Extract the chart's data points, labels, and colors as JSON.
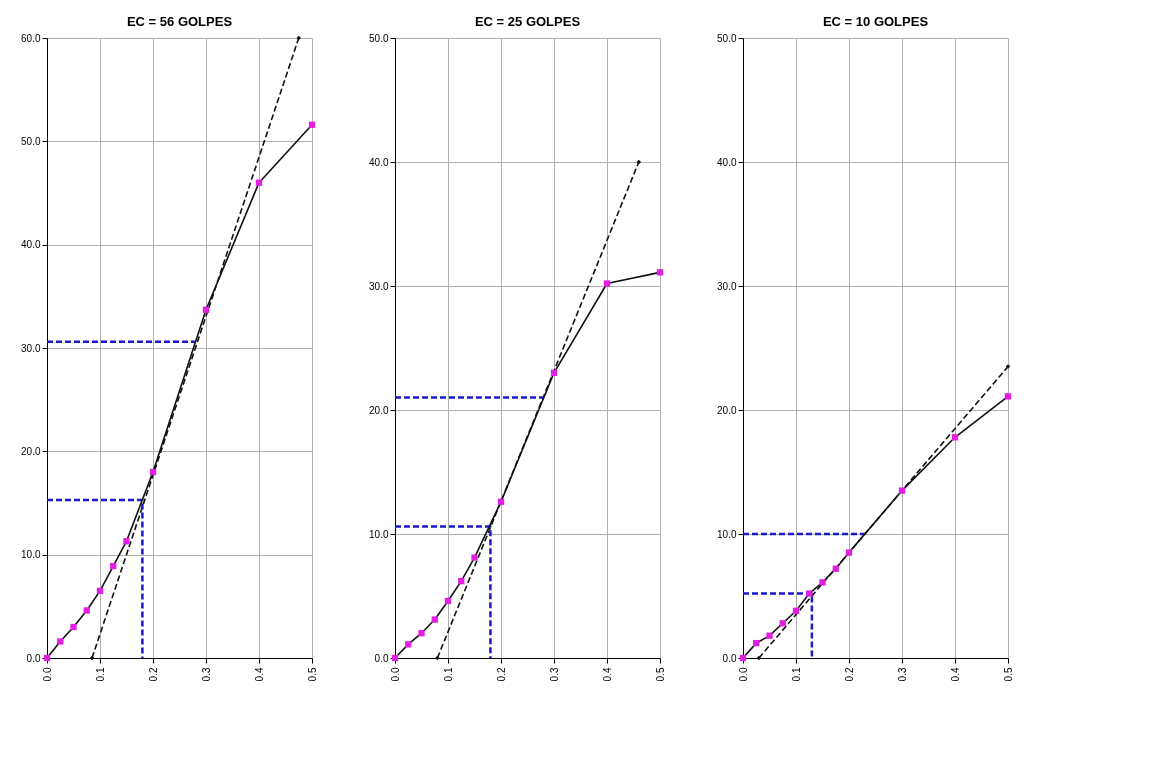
{
  "chart_data": [
    {
      "type": "line",
      "title": "EC = 56 GOLPES",
      "xlim": [
        0,
        0.5
      ],
      "ylim": [
        0,
        60
      ],
      "grid": true,
      "xticks": [
        {
          "value": 0,
          "label": "0.0"
        },
        {
          "value": 0.1,
          "label": "0.1"
        },
        {
          "value": 0.2,
          "label": "0.2"
        },
        {
          "value": 0.3,
          "label": "0.3"
        },
        {
          "value": 0.4,
          "label": "0.4"
        },
        {
          "value": 0.5,
          "label": "0.5"
        }
      ],
      "yticks": [
        {
          "value": 0,
          "label": "0.0"
        },
        {
          "value": 10,
          "label": "10.0"
        },
        {
          "value": 20,
          "label": "20.0"
        },
        {
          "value": 30,
          "label": "30.0"
        },
        {
          "value": 40,
          "label": "40.0"
        },
        {
          "value": 50,
          "label": "50.0"
        },
        {
          "value": 60,
          "label": "60.0"
        }
      ],
      "series": [
        {
          "type": "line",
          "color": "#111111",
          "line_style": "dashed",
          "marker": "diamond",
          "x": [
            0.085,
            0.475
          ],
          "values": [
            0,
            60
          ]
        },
        {
          "type": "line",
          "color": "#1a1acc",
          "line_style": "dashed",
          "marker": "none",
          "x": [
            0,
            0.18,
            0.18
          ],
          "values": [
            15.3,
            15.3,
            0
          ]
        },
        {
          "type": "line",
          "color": "#1a1acc",
          "line_style": "dashed",
          "marker": "none",
          "x": [
            0,
            0.28
          ],
          "values": [
            30.6,
            30.6
          ]
        },
        {
          "type": "line",
          "color": "#111111",
          "line_style": "solid",
          "marker": "none",
          "x": [
            0,
            0.025,
            0.05,
            0.075,
            0.1,
            0.125,
            0.15,
            0.2,
            0.3,
            0.4,
            0.5
          ],
          "values": [
            0,
            1.6,
            3.0,
            4.6,
            6.5,
            8.9,
            11.3,
            18.0,
            33.7,
            46.0,
            51.6
          ]
        },
        {
          "type": "scatter",
          "color": "#e020e0",
          "marker": "square",
          "x": [
            0,
            0.025,
            0.05,
            0.075,
            0.1,
            0.125,
            0.15,
            0.2,
            0.3,
            0.4,
            0.5
          ],
          "values": [
            0,
            1.6,
            3.0,
            4.6,
            6.5,
            8.9,
            11.3,
            18.0,
            33.7,
            46.0,
            51.6
          ]
        }
      ]
    },
    {
      "type": "line",
      "title": "EC = 25 GOLPES",
      "xlim": [
        0,
        0.5
      ],
      "ylim": [
        0,
        50
      ],
      "grid": true,
      "xticks": [
        {
          "value": 0,
          "label": "0.0"
        },
        {
          "value": 0.1,
          "label": "0.1"
        },
        {
          "value": 0.2,
          "label": "0.2"
        },
        {
          "value": 0.3,
          "label": "0.3"
        },
        {
          "value": 0.4,
          "label": "0.4"
        },
        {
          "value": 0.5,
          "label": "0.5"
        }
      ],
      "yticks": [
        {
          "value": 0,
          "label": "0.0"
        },
        {
          "value": 10,
          "label": "10.0"
        },
        {
          "value": 20,
          "label": "20.0"
        },
        {
          "value": 30,
          "label": "30.0"
        },
        {
          "value": 40,
          "label": "40.0"
        },
        {
          "value": 50,
          "label": "50.0"
        }
      ],
      "series": [
        {
          "type": "line",
          "color": "#111111",
          "line_style": "dashed",
          "marker": "diamond",
          "x": [
            0.08,
            0.46
          ],
          "values": [
            0,
            40
          ]
        },
        {
          "type": "line",
          "color": "#1a1acc",
          "line_style": "dashed",
          "marker": "none",
          "x": [
            0,
            0.18,
            0.18
          ],
          "values": [
            10.6,
            10.6,
            0
          ]
        },
        {
          "type": "line",
          "color": "#1a1acc",
          "line_style": "dashed",
          "marker": "none",
          "x": [
            0,
            0.28
          ],
          "values": [
            21.0,
            21.0
          ]
        },
        {
          "type": "line",
          "color": "#111111",
          "line_style": "solid",
          "marker": "none",
          "x": [
            0,
            0.025,
            0.05,
            0.075,
            0.1,
            0.125,
            0.15,
            0.2,
            0.3,
            0.4,
            0.5
          ],
          "values": [
            0,
            1.1,
            2.0,
            3.1,
            4.6,
            6.2,
            8.1,
            12.6,
            23.0,
            30.2,
            31.1
          ]
        },
        {
          "type": "scatter",
          "color": "#e020e0",
          "marker": "square",
          "x": [
            0,
            0.025,
            0.05,
            0.075,
            0.1,
            0.125,
            0.15,
            0.2,
            0.3,
            0.4,
            0.5
          ],
          "values": [
            0,
            1.1,
            2.0,
            3.1,
            4.6,
            6.2,
            8.1,
            12.6,
            23.0,
            30.2,
            31.1
          ]
        }
      ]
    },
    {
      "type": "line",
      "title": "EC = 10 GOLPES",
      "xlim": [
        0,
        0.5
      ],
      "ylim": [
        0,
        50
      ],
      "grid": true,
      "xticks": [
        {
          "value": 0,
          "label": "0.0"
        },
        {
          "value": 0.1,
          "label": "0.1"
        },
        {
          "value": 0.2,
          "label": "0.2"
        },
        {
          "value": 0.3,
          "label": "0.3"
        },
        {
          "value": 0.4,
          "label": "0.4"
        },
        {
          "value": 0.5,
          "label": "0.5"
        }
      ],
      "yticks": [
        {
          "value": 0,
          "label": "0.0"
        },
        {
          "value": 10,
          "label": "10.0"
        },
        {
          "value": 20,
          "label": "20.0"
        },
        {
          "value": 30,
          "label": "30.0"
        },
        {
          "value": 40,
          "label": "40.0"
        },
        {
          "value": 50,
          "label": "50.0"
        }
      ],
      "series": [
        {
          "type": "line",
          "color": "#111111",
          "line_style": "dashed",
          "marker": "diamond",
          "x": [
            0.03,
            0.5
          ],
          "values": [
            0,
            23.5
          ]
        },
        {
          "type": "line",
          "color": "#1a1acc",
          "line_style": "dashed",
          "marker": "none",
          "x": [
            0,
            0.13,
            0.13
          ],
          "values": [
            5.2,
            5.2,
            0
          ]
        },
        {
          "type": "line",
          "color": "#1a1acc",
          "line_style": "dashed",
          "marker": "none",
          "x": [
            0,
            0.23
          ],
          "values": [
            10.0,
            10.0
          ]
        },
        {
          "type": "line",
          "color": "#111111",
          "line_style": "solid",
          "marker": "none",
          "x": [
            0,
            0.025,
            0.05,
            0.075,
            0.1,
            0.125,
            0.15,
            0.175,
            0.2,
            0.3,
            0.4,
            0.5
          ],
          "values": [
            0,
            1.2,
            1.8,
            2.8,
            3.8,
            5.2,
            6.1,
            7.2,
            8.5,
            13.5,
            17.8,
            21.1
          ]
        },
        {
          "type": "scatter",
          "color": "#e020e0",
          "marker": "square",
          "x": [
            0,
            0.025,
            0.05,
            0.075,
            0.1,
            0.125,
            0.15,
            0.175,
            0.2,
            0.3,
            0.4,
            0.5
          ],
          "values": [
            0,
            1.2,
            1.8,
            2.8,
            3.8,
            5.2,
            6.1,
            7.2,
            8.5,
            13.5,
            17.8,
            21.1
          ]
        }
      ]
    }
  ]
}
